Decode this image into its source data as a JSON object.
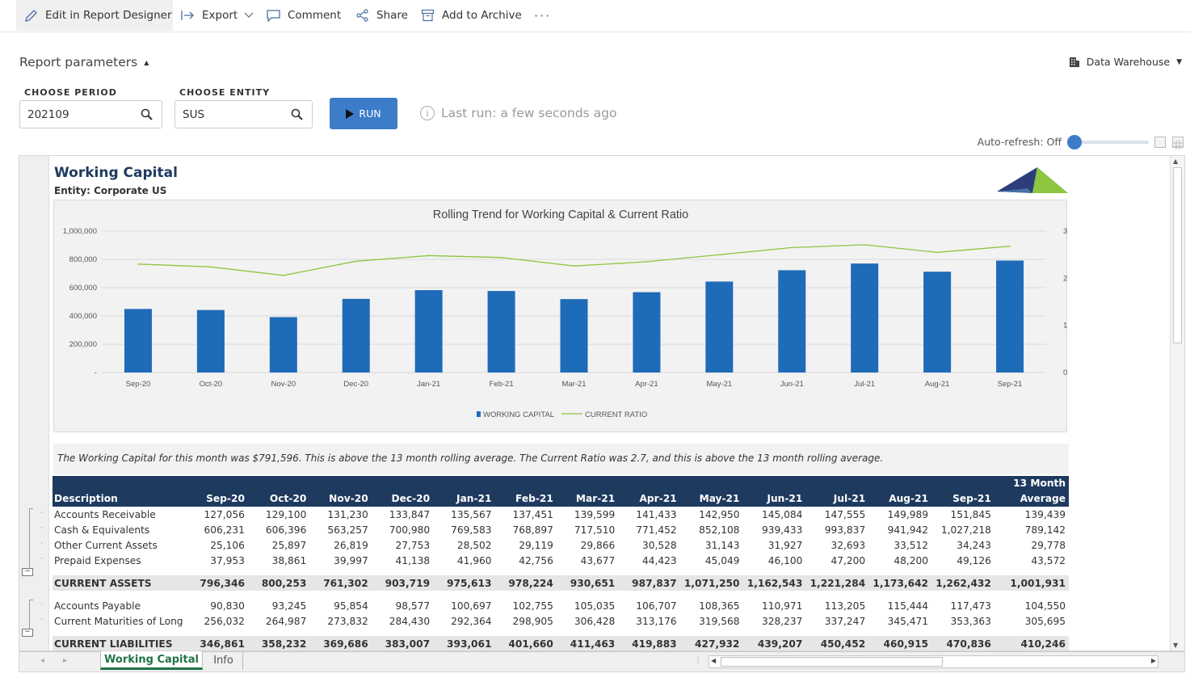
{
  "toolbar": {
    "edit_label": "Edit in Report Designer",
    "export_label": "Export",
    "comment_label": "Comment",
    "share_label": "Share",
    "archive_label": "Add to Archive",
    "more_label": "···"
  },
  "params": {
    "title": "Report parameters",
    "datasource": "Data Warehouse",
    "period_label": "CHOOSE PERIOD",
    "period_value": "202109",
    "entity_label": "CHOOSE ENTITY",
    "entity_value": "SUS",
    "run_label": "RUN",
    "last_run": "Last run: a few seconds ago",
    "auto_refresh": "Auto-refresh: Off"
  },
  "report": {
    "title": "Working Capital",
    "entity": "Entity: Corporate US",
    "commentary": "The Working Capital for this month was $791,596. This is above the 13 month rolling average. The Current Ratio was 2.7, and this is above the 13 month rolling average."
  },
  "chart_data": {
    "type": "bar",
    "title": "Rolling Trend for Working Capital & Current Ratio",
    "categories": [
      "Sep-20",
      "Oct-20",
      "Nov-20",
      "Dec-20",
      "Jan-21",
      "Feb-21",
      "Mar-21",
      "Apr-21",
      "May-21",
      "Jun-21",
      "Jul-21",
      "Aug-21",
      "Sep-21"
    ],
    "series": [
      {
        "name": "WORKING CAPITAL",
        "type": "bar",
        "axis": "left",
        "values": [
          449485,
          442021,
          391616,
          520712,
          582552,
          576564,
          519188,
          567954,
          643318,
          723336,
          770832,
          712727,
          791596
        ]
      },
      {
        "name": "CURRENT RATIO",
        "type": "line",
        "axis": "right",
        "values": [
          2.3,
          2.24,
          2.06,
          2.36,
          2.48,
          2.44,
          2.26,
          2.35,
          2.5,
          2.65,
          2.71,
          2.55,
          2.68
        ]
      }
    ],
    "ylim_left": [
      0,
      1000000
    ],
    "yticks_left": [
      "-",
      "200,000",
      "400,000",
      "600,000",
      "800,000",
      "1,000,000"
    ],
    "ylim_right": [
      0,
      3.0
    ],
    "yticks_right": [
      "0.0",
      "1.0",
      "2.0",
      "3.0"
    ],
    "grid": true,
    "legend": "bottom",
    "colors": {
      "bar": "#1e6bb8",
      "line": "#8dc63f"
    }
  },
  "table": {
    "headers": [
      "Description",
      "Sep-20",
      "Oct-20",
      "Nov-20",
      "Dec-20",
      "Jan-21",
      "Feb-21",
      "Mar-21",
      "Apr-21",
      "May-21",
      "Jun-21",
      "Jul-21",
      "Aug-21",
      "Sep-21",
      "13 Month Average"
    ],
    "rows": [
      {
        "kind": "row",
        "cells": [
          "Accounts Receivable",
          "127,056",
          "129,100",
          "131,230",
          "133,847",
          "135,567",
          "137,451",
          "139,599",
          "141,433",
          "142,950",
          "145,084",
          "147,555",
          "149,989",
          "151,845",
          "139,439"
        ]
      },
      {
        "kind": "row",
        "cells": [
          "Cash & Equivalents",
          "606,231",
          "606,396",
          "563,257",
          "700,980",
          "769,583",
          "768,897",
          "717,510",
          "771,452",
          "852,108",
          "939,433",
          "993,837",
          "941,942",
          "1,027,218",
          "789,142"
        ]
      },
      {
        "kind": "row",
        "cells": [
          "Other Current Assets",
          "25,106",
          "25,897",
          "26,819",
          "27,753",
          "28,502",
          "29,119",
          "29,866",
          "30,528",
          "31,143",
          "31,927",
          "32,693",
          "33,512",
          "34,243",
          "29,778"
        ]
      },
      {
        "kind": "row",
        "cells": [
          "Prepaid Expenses",
          "37,953",
          "38,861",
          "39,997",
          "41,138",
          "41,960",
          "42,756",
          "43,677",
          "44,423",
          "45,049",
          "46,100",
          "47,200",
          "48,200",
          "49,126",
          "43,572"
        ]
      },
      {
        "kind": "gap",
        "cells": []
      },
      {
        "kind": "total",
        "cells": [
          "CURRENT ASSETS",
          "796,346",
          "800,253",
          "761,302",
          "903,719",
          "975,613",
          "978,224",
          "930,651",
          "987,837",
          "1,071,250",
          "1,162,543",
          "1,221,284",
          "1,173,642",
          "1,262,432",
          "1,001,931"
        ]
      },
      {
        "kind": "gap",
        "cells": []
      },
      {
        "kind": "row",
        "cells": [
          "Accounts Payable",
          "90,830",
          "93,245",
          "95,854",
          "98,577",
          "100,697",
          "102,755",
          "105,035",
          "106,707",
          "108,365",
          "110,971",
          "113,205",
          "115,444",
          "117,473",
          "104,550"
        ]
      },
      {
        "kind": "row",
        "cells": [
          "Current Maturities of Long",
          "256,032",
          "264,987",
          "273,832",
          "284,430",
          "292,364",
          "298,905",
          "306,428",
          "313,176",
          "319,568",
          "328,237",
          "337,247",
          "345,471",
          "353,363",
          "305,695"
        ]
      },
      {
        "kind": "gap",
        "cells": []
      },
      {
        "kind": "total",
        "cells": [
          "CURRENT LIABILITIES",
          "346,861",
          "358,232",
          "369,686",
          "383,007",
          "393,061",
          "401,660",
          "411,463",
          "419,883",
          "427,932",
          "439,207",
          "450,452",
          "460,915",
          "470,836",
          "410,246"
        ]
      }
    ]
  },
  "tabs": {
    "sheet1": "Working Capital",
    "sheet2": "Info"
  }
}
